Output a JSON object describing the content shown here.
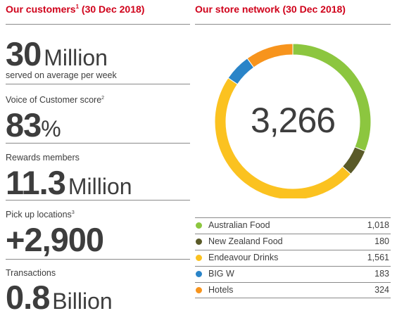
{
  "left": {
    "heading": {
      "text": "Our customers",
      "sup": "1",
      "suffix": " (30 Dec 2018)"
    },
    "stats": [
      {
        "label": "",
        "label_sup": "",
        "value": "30",
        "unit": "Million",
        "sub": "served on average per week"
      },
      {
        "label": "Voice of Customer score",
        "label_sup": "2",
        "value": "83",
        "unit": "%",
        "sub": ""
      },
      {
        "label": "Rewards members",
        "label_sup": "",
        "value": "11.3",
        "unit": "Million",
        "sub": ""
      },
      {
        "label": "Pick up locations",
        "label_sup": "3",
        "value": "+2,900",
        "unit": "",
        "sub": ""
      },
      {
        "label": "Transactions",
        "label_sup": "",
        "value": "0.8",
        "unit": "Billion",
        "sub": ""
      }
    ]
  },
  "chart_data": {
    "type": "pie",
    "style": "donut",
    "title": "Our store network (30 Dec 2018)",
    "total": "3,266",
    "categories": [
      "Australian Food",
      "New Zealand Food",
      "Endeavour Drinks",
      "BIG W",
      "Hotels"
    ],
    "values": [
      1018,
      180,
      1561,
      183,
      324
    ],
    "value_labels": [
      "1,018",
      "180",
      "1,561",
      "183",
      "324"
    ],
    "colors": [
      "#8cc63f",
      "#5a5a28",
      "#fbc220",
      "#2a84c8",
      "#f7941d"
    ],
    "legend_position": "below"
  }
}
